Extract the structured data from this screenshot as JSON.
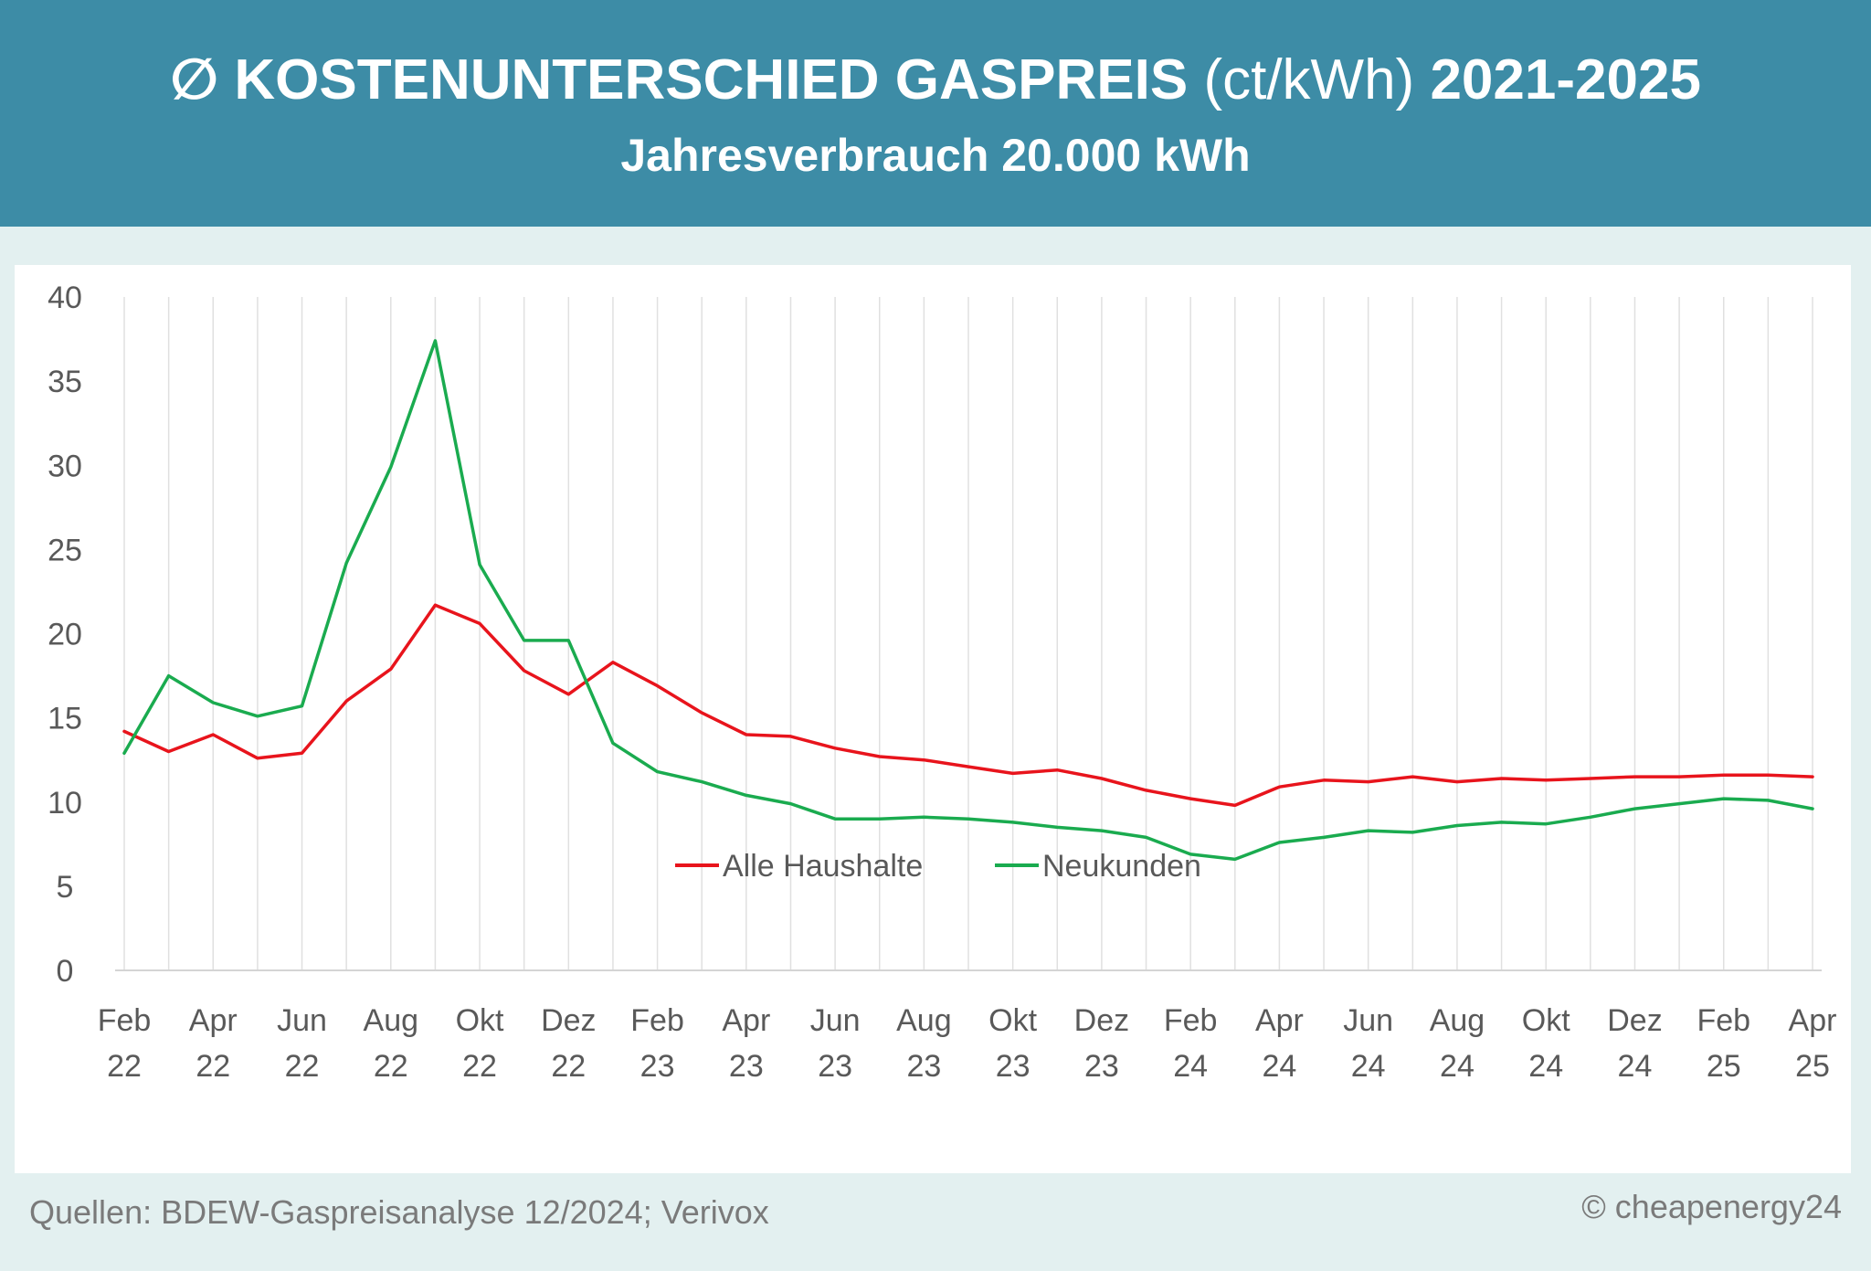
{
  "header": {
    "title_symbol": "∅",
    "title_main": "KOSTENUNTERSCHIED GASPREIS",
    "title_unit": "(ct/kWh)",
    "title_years": "2021-2025",
    "subtitle": "Jahresverbrauch 20.000 kWh"
  },
  "footer": {
    "source": "Quellen: BDEW-Gaspreisanalyse 12/2024; Verivox",
    "copyright": "© cheapenergy24"
  },
  "colors": {
    "header_bg": "#3d8ca6",
    "alle_haushalte": "#e8141c",
    "neukunden": "#1aab4f"
  },
  "chart_data": {
    "type": "line",
    "ylim": [
      0,
      40
    ],
    "yticks": [
      0,
      5,
      10,
      15,
      20,
      25,
      30,
      35,
      40
    ],
    "grid": "vertical",
    "legend_position": "bottom-center",
    "x": [
      "Feb 22",
      "Mär 22",
      "Apr 22",
      "Mai 22",
      "Jun 22",
      "Jul 22",
      "Aug 22",
      "Sep 22",
      "Okt 22",
      "Nov 22",
      "Dez 22",
      "Jan 23",
      "Feb 23",
      "Mär 23",
      "Apr 23",
      "Mai 23",
      "Jun 23",
      "Jul 23",
      "Aug 23",
      "Sep 23",
      "Okt 23",
      "Nov 23",
      "Dez 23",
      "Jan 24",
      "Feb 24",
      "Mär 24",
      "Apr 24",
      "Mai 24",
      "Jun 24",
      "Jul 24",
      "Aug 24",
      "Sep 24",
      "Okt 24",
      "Nov 24",
      "Dez 24",
      "Jan 25",
      "Feb 25",
      "Mär 25",
      "Apr 25"
    ],
    "x_tick_labels": [
      {
        "line1": "Feb",
        "line2": "22"
      },
      {
        "line1": "Apr",
        "line2": "22"
      },
      {
        "line1": "Jun",
        "line2": "22"
      },
      {
        "line1": "Aug",
        "line2": "22"
      },
      {
        "line1": "Okt",
        "line2": "22"
      },
      {
        "line1": "Dez",
        "line2": "22"
      },
      {
        "line1": "Feb",
        "line2": "23"
      },
      {
        "line1": "Apr",
        "line2": "23"
      },
      {
        "line1": "Jun",
        "line2": "23"
      },
      {
        "line1": "Aug",
        "line2": "23"
      },
      {
        "line1": "Okt",
        "line2": "23"
      },
      {
        "line1": "Dez",
        "line2": "23"
      },
      {
        "line1": "Feb",
        "line2": "24"
      },
      {
        "line1": "Apr",
        "line2": "24"
      },
      {
        "line1": "Jun",
        "line2": "24"
      },
      {
        "line1": "Aug",
        "line2": "24"
      },
      {
        "line1": "Okt",
        "line2": "24"
      },
      {
        "line1": "Dez",
        "line2": "24"
      },
      {
        "line1": "Feb",
        "line2": "25"
      },
      {
        "line1": "Apr",
        "line2": "25"
      }
    ],
    "series": [
      {
        "name": "Alle Haushalte",
        "color": "#e8141c",
        "values": [
          14.2,
          13.0,
          14.0,
          12.6,
          12.9,
          16.0,
          17.9,
          21.7,
          20.6,
          17.8,
          16.4,
          18.3,
          16.9,
          15.3,
          14.0,
          13.9,
          13.2,
          12.7,
          12.5,
          12.1,
          11.7,
          11.9,
          11.4,
          10.7,
          10.2,
          9.8,
          10.9,
          11.3,
          11.2,
          11.5,
          11.2,
          11.4,
          11.3,
          11.4,
          11.5,
          11.5,
          11.6,
          11.6,
          11.5
        ]
      },
      {
        "name": "Neukunden",
        "color": "#1aab4f",
        "values": [
          12.9,
          17.5,
          15.9,
          15.1,
          15.7,
          24.2,
          29.9,
          37.4,
          24.1,
          19.6,
          19.6,
          13.5,
          11.8,
          11.2,
          10.4,
          9.9,
          9.0,
          9.0,
          9.1,
          9.0,
          8.8,
          8.5,
          8.3,
          7.9,
          6.9,
          6.6,
          7.6,
          7.9,
          8.3,
          8.2,
          8.6,
          8.8,
          8.7,
          9.1,
          9.6,
          9.9,
          10.2,
          10.1,
          9.6
        ]
      }
    ]
  }
}
